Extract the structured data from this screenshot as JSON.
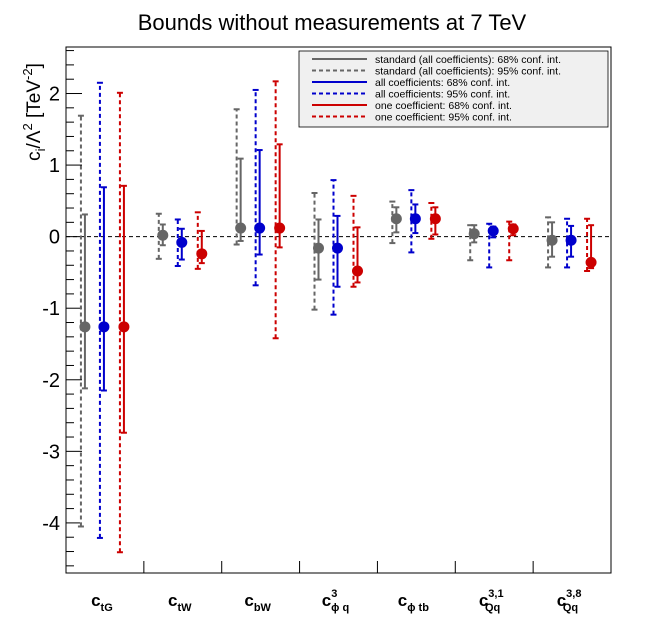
{
  "chart_data": {
    "type": "errorbar",
    "title": "Bounds without measurements at 7 TeV",
    "ylabel": "c_i/Λ^2 [TeV^-2]",
    "ylabel_parts": {
      "base": "c",
      "sub": "i",
      "mid": "/Λ",
      "sup": "2",
      "unit": " [TeV",
      "unit_sup": "-2",
      "close": "]"
    },
    "ylim": [
      -4.7,
      2.65
    ],
    "yticks": [
      -4,
      -3,
      -2,
      -1,
      0,
      1,
      2
    ],
    "ytick_labels": [
      "-4",
      "-3",
      "-2",
      "-1",
      "0",
      "1",
      "2"
    ],
    "reference_line": 0,
    "categories": [
      {
        "base": "c",
        "sub": "tG",
        "sup": ""
      },
      {
        "base": "c",
        "sub": "tW",
        "sup": ""
      },
      {
        "base": "c",
        "sub": "bW",
        "sup": ""
      },
      {
        "base": "c",
        "sub": "ϕ q",
        "sup": "3"
      },
      {
        "base": "c",
        "sub": "ϕ tb",
        "sup": ""
      },
      {
        "base": "c",
        "sub": "Qq",
        "sup": "3,1"
      },
      {
        "base": "c",
        "sub": "Qq",
        "sup": "3,8"
      }
    ],
    "series": [
      {
        "name": "standard (all coefficients)",
        "color": "#666666",
        "central": [
          -1.26,
          0.02,
          0.12,
          -0.16,
          0.25,
          0.04,
          -0.05
        ],
        "ci68": [
          [
            -2.12,
            0.31
          ],
          [
            -0.12,
            0.17
          ],
          [
            -0.06,
            1.09
          ],
          [
            -0.6,
            0.24
          ],
          [
            0.06,
            0.41
          ],
          [
            -0.08,
            0.16
          ],
          [
            -0.28,
            0.2
          ]
        ],
        "ci95": [
          [
            -4.05,
            1.69
          ],
          [
            -0.31,
            0.32
          ],
          [
            -0.11,
            1.78
          ],
          [
            -1.02,
            0.61
          ],
          [
            -0.09,
            0.49
          ],
          [
            -0.33,
            0.16
          ],
          [
            -0.43,
            0.27
          ]
        ]
      },
      {
        "name": "all coefficients",
        "color": "#0000cc",
        "central": [
          -1.26,
          -0.08,
          0.12,
          -0.16,
          0.25,
          0.08,
          -0.05
        ],
        "ci68": [
          [
            -2.15,
            0.69
          ],
          [
            -0.32,
            0.11
          ],
          [
            -0.25,
            1.21
          ],
          [
            -0.7,
            0.29
          ],
          [
            0.05,
            0.45
          ],
          [
            -0.01,
            0.14
          ],
          [
            -0.28,
            0.15
          ]
        ],
        "ci95": [
          [
            -4.21,
            2.15
          ],
          [
            -0.41,
            0.24
          ],
          [
            -0.68,
            2.05
          ],
          [
            -1.09,
            0.79
          ],
          [
            -0.22,
            0.65
          ],
          [
            -0.43,
            0.18
          ],
          [
            -0.43,
            0.25
          ]
        ]
      },
      {
        "name": "one coefficient",
        "color": "#cc0000",
        "central": [
          -1.26,
          -0.24,
          0.12,
          -0.48,
          0.25,
          0.11,
          -0.36
        ],
        "ci68": [
          [
            -2.74,
            0.71
          ],
          [
            -0.37,
            0.08
          ],
          [
            -0.15,
            1.29
          ],
          [
            -0.64,
            0.13
          ],
          [
            0.03,
            0.41
          ],
          [
            0.02,
            0.17
          ],
          [
            -0.44,
            0.16
          ]
        ],
        "ci95": [
          [
            -4.41,
            2.01
          ],
          [
            -0.45,
            0.34
          ],
          [
            -1.42,
            2.17
          ],
          [
            -0.7,
            0.57
          ],
          [
            -0.03,
            0.47
          ],
          [
            -0.33,
            0.21
          ],
          [
            -0.48,
            0.25
          ]
        ]
      }
    ],
    "legend": {
      "position": "top-right",
      "entries": [
        {
          "label": "standard (all coefficients): 68% conf. int.",
          "color": "#666666",
          "dash": false
        },
        {
          "label": "standard (all coefficients): 95% conf. int.",
          "color": "#666666",
          "dash": true
        },
        {
          "label": "all coefficients: 68% conf. int.",
          "color": "#0000cc",
          "dash": false
        },
        {
          "label": "all coefficients: 95% conf. int.",
          "color": "#0000cc",
          "dash": true
        },
        {
          "label": "one coefficient: 68% conf. int.",
          "color": "#cc0000",
          "dash": false
        },
        {
          "label": "one coefficient: 95% conf. int.",
          "color": "#cc0000",
          "dash": true
        }
      ]
    }
  }
}
